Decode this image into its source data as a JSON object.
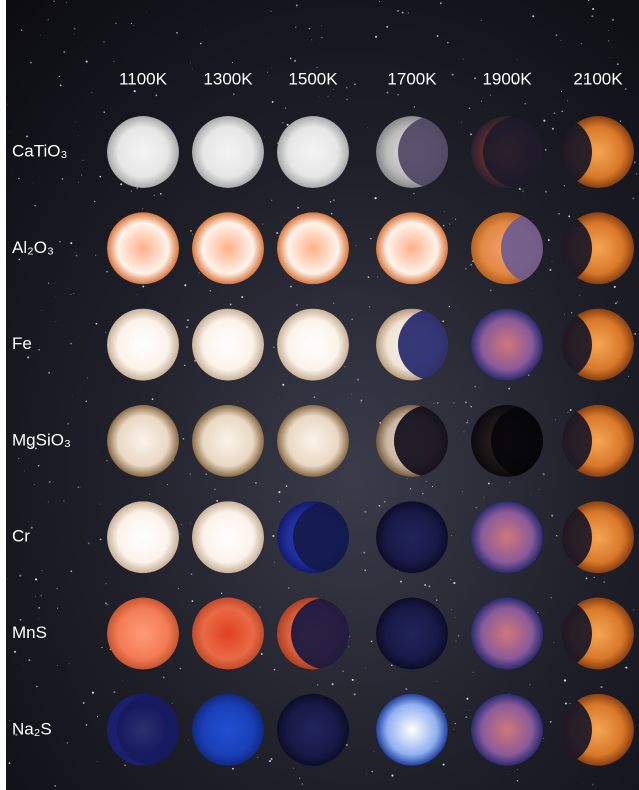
{
  "columns": [
    "1100K",
    "1300K",
    "1500K",
    "1700K",
    "1900K",
    "2100K"
  ],
  "rows": [
    "CaTiO₃",
    "Al₂O₃",
    "Fe",
    "MgSiO₃",
    "Cr",
    "MnS",
    "Na₂S"
  ]
}
